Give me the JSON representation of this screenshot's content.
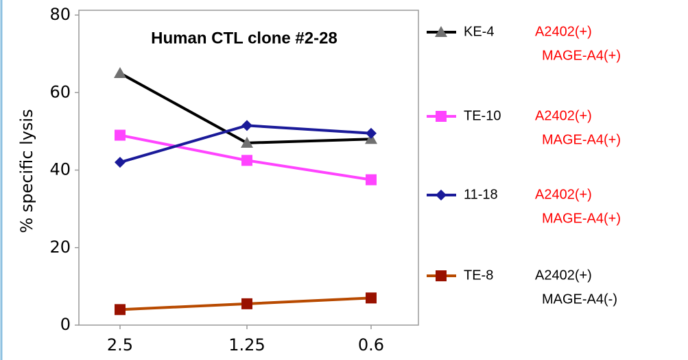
{
  "chart_data": {
    "type": "line",
    "title": "Human CTL clone #2-28",
    "y_label": "% specific lysis",
    "categories": [
      "2.5",
      "1.25",
      "0.6"
    ],
    "ylim": [
      0,
      80
    ],
    "yticks": [
      0,
      20,
      40,
      60,
      80
    ],
    "series": [
      {
        "name": "KE-4",
        "color": "#000000",
        "marker": "triangle",
        "marker_color": "#707070",
        "values": [
          65,
          47,
          48
        ],
        "annotation": [
          "A2402(+)",
          "MAGE-A4(+)"
        ],
        "annotation_color": "#ff0000"
      },
      {
        "name": "TE-10",
        "color": "#ff44ff",
        "marker": "square",
        "marker_color": "#ff44ff",
        "values": [
          49,
          42.5,
          37.5
        ],
        "annotation": [
          "A2402(+)",
          "MAGE-A4(+)"
        ],
        "annotation_color": "#ff0000"
      },
      {
        "name": "11-18",
        "color": "#1a1a99",
        "marker": "diamond",
        "marker_color": "#1a1a99",
        "values": [
          42,
          51.5,
          49.5
        ],
        "annotation": [
          "A2402(+)",
          "MAGE-A4(+)"
        ],
        "annotation_color": "#ff0000"
      },
      {
        "name": "TE-8",
        "color": "#b84a00",
        "marker": "square",
        "marker_color": "#991100",
        "values": [
          4,
          5.5,
          7
        ],
        "annotation": [
          "A2402(+)",
          "MAGE-A4(-)"
        ],
        "annotation_color": "#000000"
      }
    ]
  }
}
